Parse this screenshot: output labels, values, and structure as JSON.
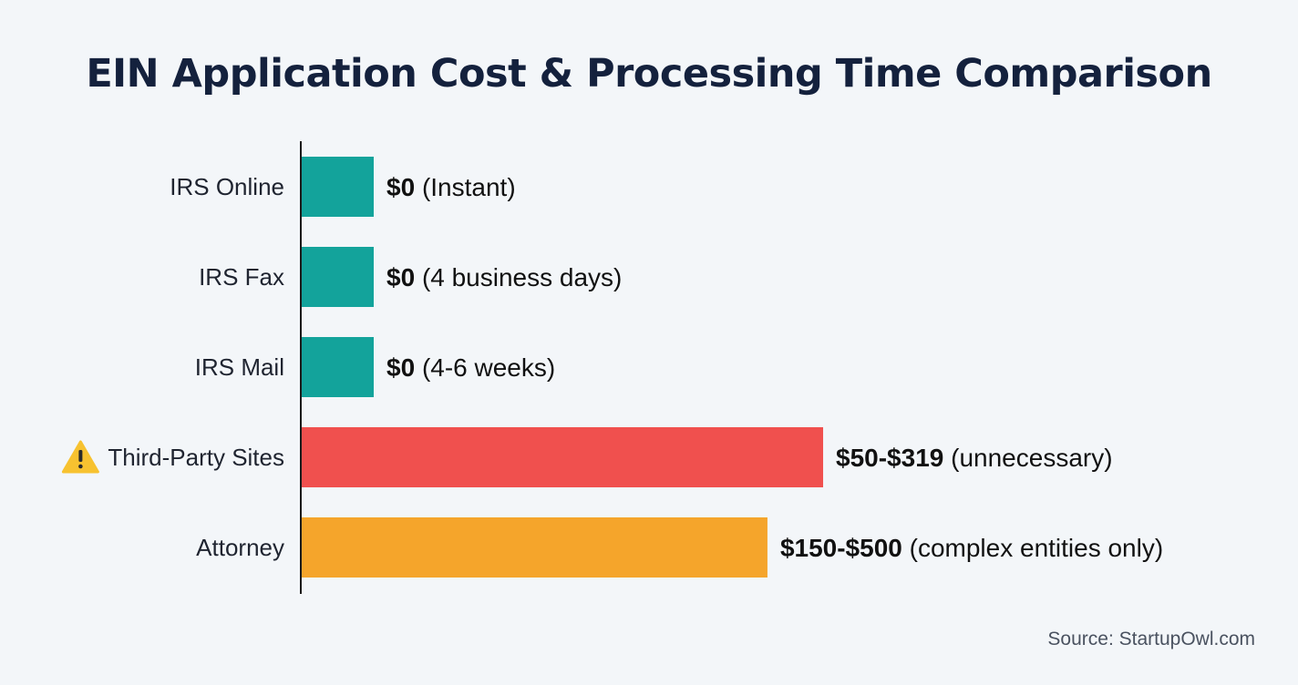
{
  "title": "EIN Application Cost & Processing Time Comparison",
  "source": "Source: StartupOwl.com",
  "chart_data": {
    "type": "bar",
    "orientation": "horizontal",
    "title": "EIN Application Cost & Processing Time Comparison",
    "xlabel": "",
    "ylabel": "",
    "xlim": [
      0,
      540
    ],
    "grid": false,
    "categories": [
      "IRS Online",
      "IRS Fax",
      "IRS Mail",
      "Third-Party Sites",
      "Attorney"
    ],
    "values": [
      0,
      0,
      0,
      319,
      285
    ],
    "bar_colors": [
      "#13a39b",
      "#13a39b",
      "#13a39b",
      "#f0504e",
      "#f5a52b"
    ],
    "warning_icons": [
      false,
      false,
      false,
      true,
      false
    ],
    "warning_icon": "warning-triangle-icon",
    "data_labels": [
      {
        "amount": "$0",
        "note": "(Instant)"
      },
      {
        "amount": "$0",
        "note": "(4 business days)"
      },
      {
        "amount": "$0",
        "note": "(4-6 weeks)"
      },
      {
        "amount": "$50-$319",
        "note": "(unnecessary)"
      },
      {
        "amount": "$150-$500",
        "note": "(complex entities only)"
      }
    ]
  }
}
